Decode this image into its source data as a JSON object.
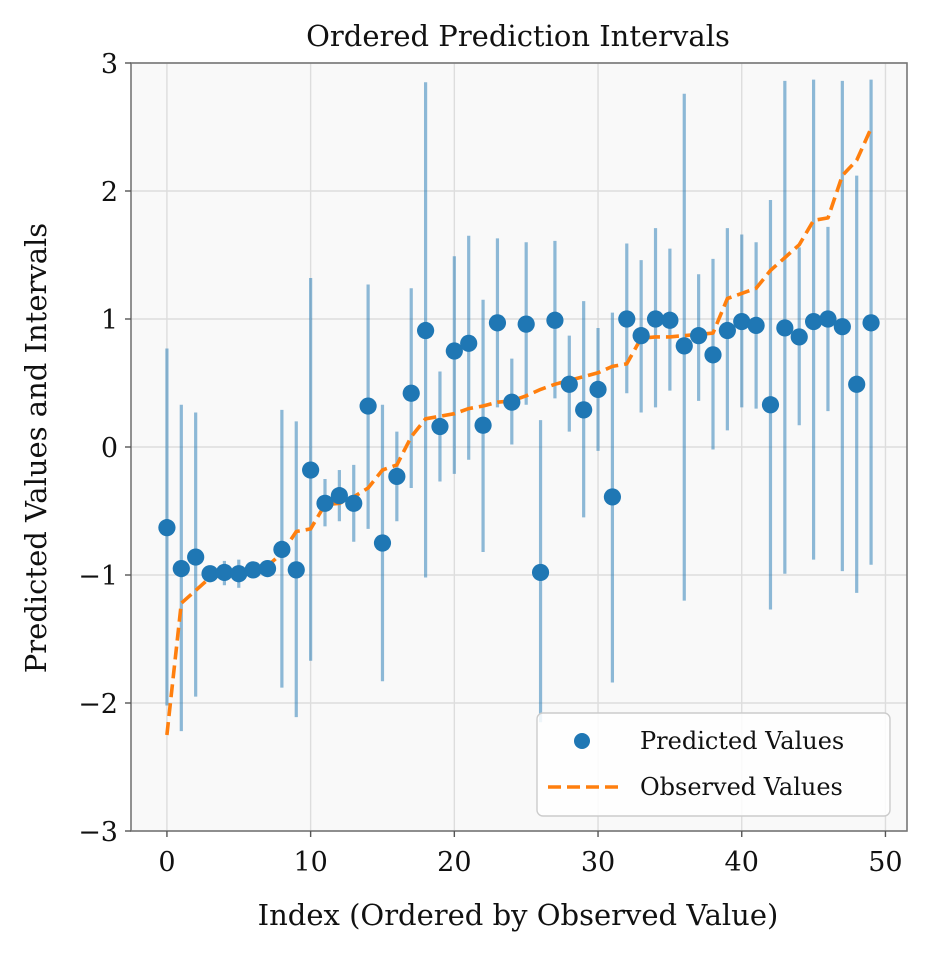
{
  "chart_data": {
    "type": "scatter",
    "title": "Ordered Prediction Intervals",
    "xlabel": "Index (Ordered by Observed Value)",
    "ylabel": "Predicted Values and Intervals",
    "xlim": [
      -2.5,
      51.5
    ],
    "ylim": [
      -3,
      3
    ],
    "xticks": [
      0,
      10,
      20,
      30,
      40,
      50
    ],
    "yticks": [
      -3,
      -2,
      -1,
      0,
      1,
      2,
      3
    ],
    "xtick_labels": [
      "0",
      "10",
      "20",
      "30",
      "40",
      "50"
    ],
    "ytick_labels": [
      "−3",
      "−2",
      "−1",
      "0",
      "1",
      "2",
      "3"
    ],
    "grid": true,
    "legend_position": "lower-right",
    "colors": {
      "predicted": "#1f77b4",
      "interval": "#1f77b4",
      "observed": "#ff7f0e",
      "background": "#f9f9f9"
    },
    "series": [
      {
        "name": "Predicted Values",
        "style": "points",
        "x": [
          0,
          1,
          2,
          3,
          4,
          5,
          6,
          7,
          8,
          9,
          10,
          11,
          12,
          13,
          14,
          15,
          16,
          17,
          18,
          19,
          20,
          21,
          22,
          23,
          24,
          25,
          26,
          27,
          28,
          29,
          30,
          31,
          32,
          33,
          34,
          35,
          36,
          37,
          38,
          39,
          40,
          41,
          42,
          43,
          44,
          45,
          46,
          47,
          48,
          49
        ],
        "values": [
          -0.63,
          -0.95,
          -0.86,
          -0.99,
          -0.98,
          -0.99,
          -0.96,
          -0.95,
          -0.8,
          -0.96,
          -0.18,
          -0.44,
          -0.38,
          -0.44,
          0.32,
          -0.75,
          -0.23,
          0.42,
          0.91,
          0.16,
          0.75,
          0.81,
          0.17,
          0.97,
          0.35,
          0.96,
          -0.98,
          0.99,
          0.49,
          0.29,
          0.45,
          -0.39,
          1.0,
          0.87,
          1.0,
          0.99,
          0.79,
          0.87,
          0.72,
          0.91,
          0.98,
          0.95,
          0.33,
          0.93,
          0.86,
          0.98,
          1.0,
          0.94,
          0.49,
          0.97
        ]
      },
      {
        "name": "Observed Values",
        "style": "dashed-line",
        "x": [
          0,
          1,
          2,
          3,
          4,
          5,
          6,
          7,
          8,
          9,
          10,
          11,
          12,
          13,
          14,
          15,
          16,
          17,
          18,
          19,
          20,
          21,
          22,
          23,
          24,
          25,
          26,
          27,
          28,
          29,
          30,
          31,
          32,
          33,
          34,
          35,
          36,
          37,
          38,
          39,
          40,
          41,
          42,
          43,
          44,
          45,
          46,
          47,
          48,
          49
        ],
        "values": [
          -2.25,
          -1.22,
          -1.12,
          -1.02,
          -1.0,
          -1.0,
          -0.97,
          -0.93,
          -0.83,
          -0.66,
          -0.64,
          -0.45,
          -0.44,
          -0.39,
          -0.32,
          -0.18,
          -0.14,
          0.08,
          0.22,
          0.24,
          0.26,
          0.3,
          0.32,
          0.35,
          0.36,
          0.4,
          0.45,
          0.49,
          0.52,
          0.55,
          0.58,
          0.63,
          0.65,
          0.85,
          0.86,
          0.86,
          0.87,
          0.88,
          0.89,
          1.16,
          1.2,
          1.24,
          1.38,
          1.48,
          1.58,
          1.77,
          1.79,
          2.12,
          2.24,
          2.49
        ]
      },
      {
        "name": "Prediction Intervals",
        "style": "vertical-lines",
        "x": [
          0,
          1,
          2,
          3,
          4,
          5,
          6,
          7,
          8,
          9,
          10,
          11,
          12,
          13,
          14,
          15,
          16,
          17,
          18,
          19,
          20,
          21,
          22,
          23,
          24,
          25,
          26,
          27,
          28,
          29,
          30,
          31,
          32,
          33,
          34,
          35,
          36,
          37,
          38,
          39,
          40,
          41,
          42,
          43,
          44,
          45,
          46,
          47,
          48,
          49
        ],
        "lower": [
          -2.02,
          -2.22,
          -1.95,
          -1.05,
          -1.08,
          -1.1,
          -1.02,
          -1.0,
          -1.88,
          -2.11,
          -1.67,
          -0.62,
          -0.58,
          -0.74,
          -0.64,
          -1.83,
          -0.58,
          -0.32,
          -1.02,
          -0.27,
          -0.21,
          -0.1,
          -0.82,
          0.31,
          0.02,
          0.33,
          -2.15,
          0.38,
          0.12,
          -0.55,
          -0.03,
          -1.84,
          0.42,
          0.27,
          0.31,
          0.44,
          -1.2,
          0.36,
          -0.02,
          0.13,
          0.31,
          0.3,
          -1.27,
          -0.99,
          0.17,
          -0.88,
          0.28,
          -0.97,
          -1.14,
          -0.92
        ],
        "upper": [
          0.77,
          0.33,
          0.27,
          -0.93,
          -0.89,
          -0.88,
          -0.91,
          -0.89,
          0.29,
          0.2,
          1.32,
          -0.25,
          -0.18,
          -0.14,
          1.27,
          0.33,
          0.12,
          1.24,
          2.85,
          0.59,
          1.49,
          1.65,
          1.15,
          1.63,
          0.69,
          1.6,
          0.21,
          1.61,
          0.87,
          1.14,
          0.93,
          1.05,
          1.59,
          1.46,
          1.71,
          1.55,
          2.76,
          1.35,
          1.47,
          1.71,
          1.66,
          1.6,
          1.93,
          2.86,
          1.56,
          2.87,
          1.72,
          2.86,
          2.12,
          2.87
        ]
      }
    ],
    "legend": [
      {
        "label": "Predicted Values",
        "marker": "circle"
      },
      {
        "label": "Observed Values",
        "marker": "dashed-line"
      }
    ]
  }
}
